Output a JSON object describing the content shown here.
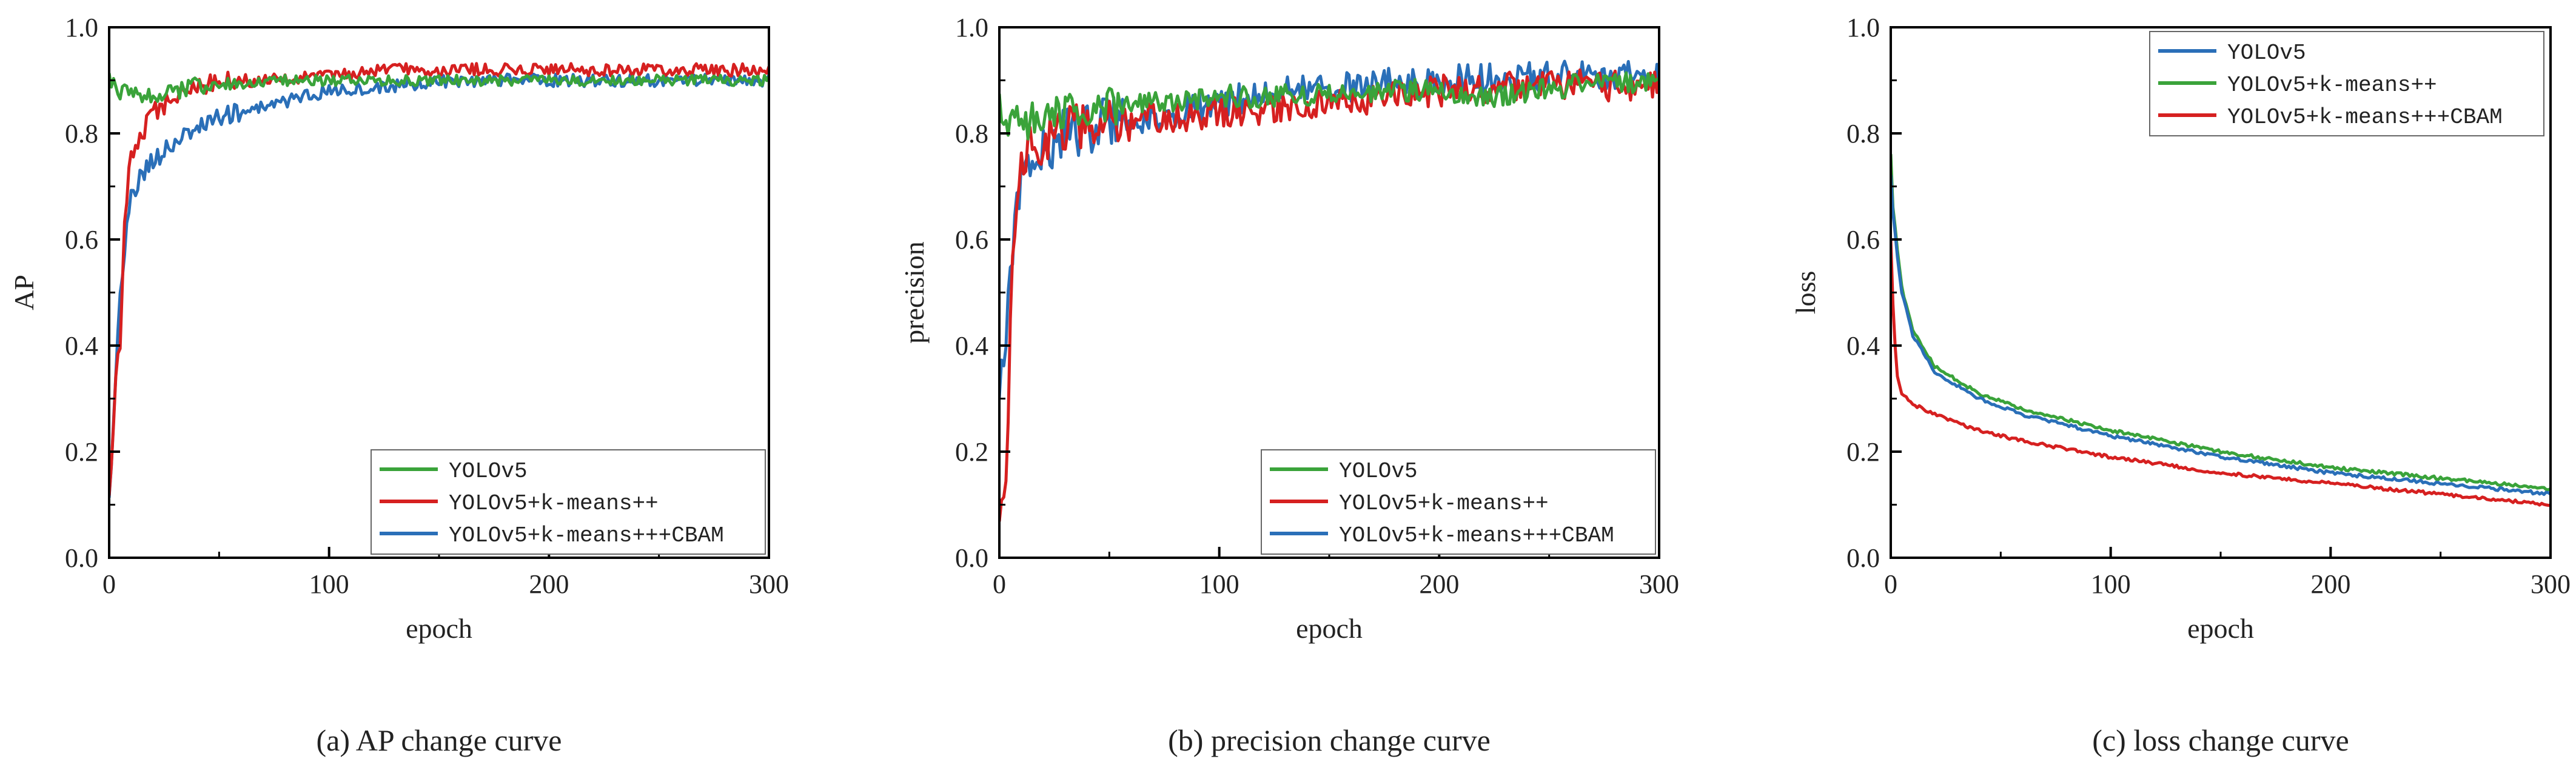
{
  "colors": {
    "yolov5_ap_prec": "#3aa33a",
    "kmeans_ap_prec": "#d62020",
    "cbam_ap_prec": "#2a6fb8",
    "yolov5_loss": "#2a6fb8",
    "kmeans_loss": "#3aa33a",
    "cbam_loss": "#d62020",
    "axis": "#000000"
  },
  "chart_data": [
    {
      "type": "line",
      "title": "",
      "caption": "(a) AP change curve",
      "xlabel": "epoch",
      "ylabel": "AP",
      "xlim": [
        0,
        300
      ],
      "ylim": [
        0.0,
        1.0
      ],
      "xticks": [
        "0",
        "100",
        "200",
        "300"
      ],
      "yticks": [
        "0.0",
        "0.2",
        "0.4",
        "0.6",
        "0.8",
        "1.0"
      ],
      "legend_position": "bottom-right",
      "series": [
        {
          "name": "YOLOv5",
          "color_key": "yolov5_ap_prec",
          "x": [
            0,
            2,
            5,
            10,
            20,
            30,
            40,
            50,
            60,
            80,
            100,
            130,
            160,
            200,
            250,
            300
          ],
          "y": [
            0.9,
            0.89,
            0.88,
            0.87,
            0.87,
            0.88,
            0.89,
            0.89,
            0.89,
            0.9,
            0.9,
            0.9,
            0.9,
            0.9,
            0.9,
            0.9
          ]
        },
        {
          "name": "YOLOv5+k-means++",
          "color_key": "kmeans_ap_prec",
          "x": [
            0,
            2,
            4,
            5,
            7,
            10,
            15,
            20,
            30,
            40,
            50,
            60,
            80,
            100,
            130,
            160,
            200,
            250,
            300
          ],
          "y": [
            0.1,
            0.25,
            0.4,
            0.38,
            0.65,
            0.75,
            0.8,
            0.84,
            0.87,
            0.89,
            0.9,
            0.9,
            0.9,
            0.91,
            0.92,
            0.92,
            0.92,
            0.92,
            0.92
          ]
        },
        {
          "name": "YOLOv5+k-means+++CBAM",
          "color_key": "cbam_ap_prec",
          "x": [
            0,
            3,
            5,
            6,
            8,
            10,
            15,
            20,
            30,
            40,
            50,
            60,
            80,
            100,
            130,
            160,
            200,
            250,
            300
          ],
          "y": [
            0.1,
            0.35,
            0.5,
            0.52,
            0.62,
            0.68,
            0.72,
            0.75,
            0.78,
            0.81,
            0.83,
            0.84,
            0.86,
            0.88,
            0.89,
            0.9,
            0.9,
            0.9,
            0.9
          ]
        }
      ]
    },
    {
      "type": "line",
      "title": "",
      "caption": "(b) precision change curve",
      "xlabel": "epoch",
      "ylabel": "precision",
      "xlim": [
        0,
        300
      ],
      "ylim": [
        0.0,
        1.0
      ],
      "xticks": [
        "0",
        "100",
        "200",
        "300"
      ],
      "yticks": [
        "0.0",
        "0.2",
        "0.4",
        "0.6",
        "0.8",
        "1.0"
      ],
      "legend_position": "bottom-right",
      "series": [
        {
          "name": "YOLOv5",
          "color_key": "yolov5_ap_prec",
          "x": [
            0,
            5,
            10,
            20,
            30,
            50,
            80,
            100,
            130,
            160,
            200,
            230,
            260,
            300
          ],
          "y": [
            0.85,
            0.82,
            0.82,
            0.83,
            0.84,
            0.85,
            0.86,
            0.87,
            0.87,
            0.88,
            0.88,
            0.87,
            0.89,
            0.9
          ]
        },
        {
          "name": "YOLOv5+k-means++",
          "color_key": "kmeans_ap_prec",
          "x": [
            0,
            3,
            5,
            8,
            12,
            20,
            30,
            50,
            80,
            100,
            130,
            160,
            200,
            250,
            300
          ],
          "y": [
            0.05,
            0.1,
            0.45,
            0.7,
            0.76,
            0.79,
            0.81,
            0.82,
            0.83,
            0.84,
            0.85,
            0.86,
            0.88,
            0.89,
            0.89
          ]
        },
        {
          "name": "YOLOv5+k-means+++CBAM",
          "color_key": "cbam_ap_prec",
          "x": [
            0,
            3,
            5,
            8,
            12,
            20,
            30,
            50,
            80,
            100,
            130,
            160,
            200,
            250,
            300
          ],
          "y": [
            0.3,
            0.4,
            0.55,
            0.68,
            0.74,
            0.77,
            0.8,
            0.82,
            0.84,
            0.86,
            0.88,
            0.89,
            0.9,
            0.91,
            0.91
          ]
        }
      ]
    },
    {
      "type": "line",
      "title": "",
      "caption": "(c) loss change curve",
      "xlabel": "epoch",
      "ylabel": "loss",
      "xlim": [
        0,
        300
      ],
      "ylim": [
        0.0,
        1.0
      ],
      "xticks": [
        "0",
        "100",
        "200",
        "300"
      ],
      "yticks": [
        "0.0",
        "0.2",
        "0.4",
        "0.6",
        "0.8",
        "1.0"
      ],
      "legend_position": "top-right",
      "series": [
        {
          "name": "YOLOv5",
          "color_key": "yolov5_loss",
          "x": [
            0,
            1,
            3,
            5,
            10,
            20,
            40,
            60,
            100,
            150,
            200,
            250,
            300
          ],
          "y": [
            0.72,
            0.65,
            0.57,
            0.5,
            0.42,
            0.35,
            0.3,
            0.27,
            0.23,
            0.19,
            0.16,
            0.14,
            0.12
          ]
        },
        {
          "name": "YOLOv5+k-means++",
          "color_key": "kmeans_loss",
          "x": [
            0,
            1,
            3,
            5,
            10,
            20,
            40,
            60,
            100,
            150,
            200,
            250,
            300
          ],
          "y": [
            0.76,
            0.66,
            0.58,
            0.51,
            0.43,
            0.36,
            0.31,
            0.28,
            0.24,
            0.2,
            0.17,
            0.15,
            0.13
          ]
        },
        {
          "name": "YOLOv5+k-means+++CBAM",
          "color_key": "cbam_loss",
          "x": [
            0,
            1,
            2,
            3,
            5,
            10,
            20,
            40,
            60,
            100,
            150,
            200,
            250,
            300
          ],
          "y": [
            0.6,
            0.48,
            0.4,
            0.34,
            0.31,
            0.29,
            0.27,
            0.24,
            0.22,
            0.19,
            0.16,
            0.14,
            0.12,
            0.1
          ]
        }
      ]
    }
  ]
}
